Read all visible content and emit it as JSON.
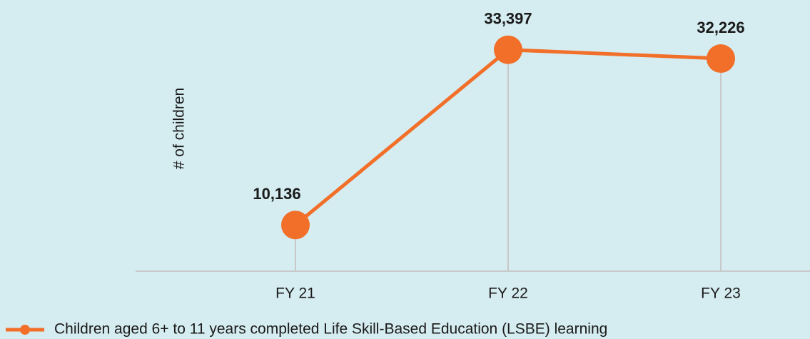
{
  "chart_data": {
    "type": "line",
    "y_label": "# of children",
    "categories": [
      "FY 21",
      "FY 22",
      "FY 23"
    ],
    "series": [
      {
        "name": "Children aged 6+ to 11 years completed Life Skill-Based Education (LSBE) learning",
        "color": "#f26f2a",
        "values": [
          10136,
          33397,
          32226
        ],
        "value_labels": [
          "10,136",
          "33,397",
          "32,226"
        ]
      }
    ],
    "ylim": [
      4000,
      40000
    ],
    "drop_lines": true,
    "legend": "bottom"
  }
}
